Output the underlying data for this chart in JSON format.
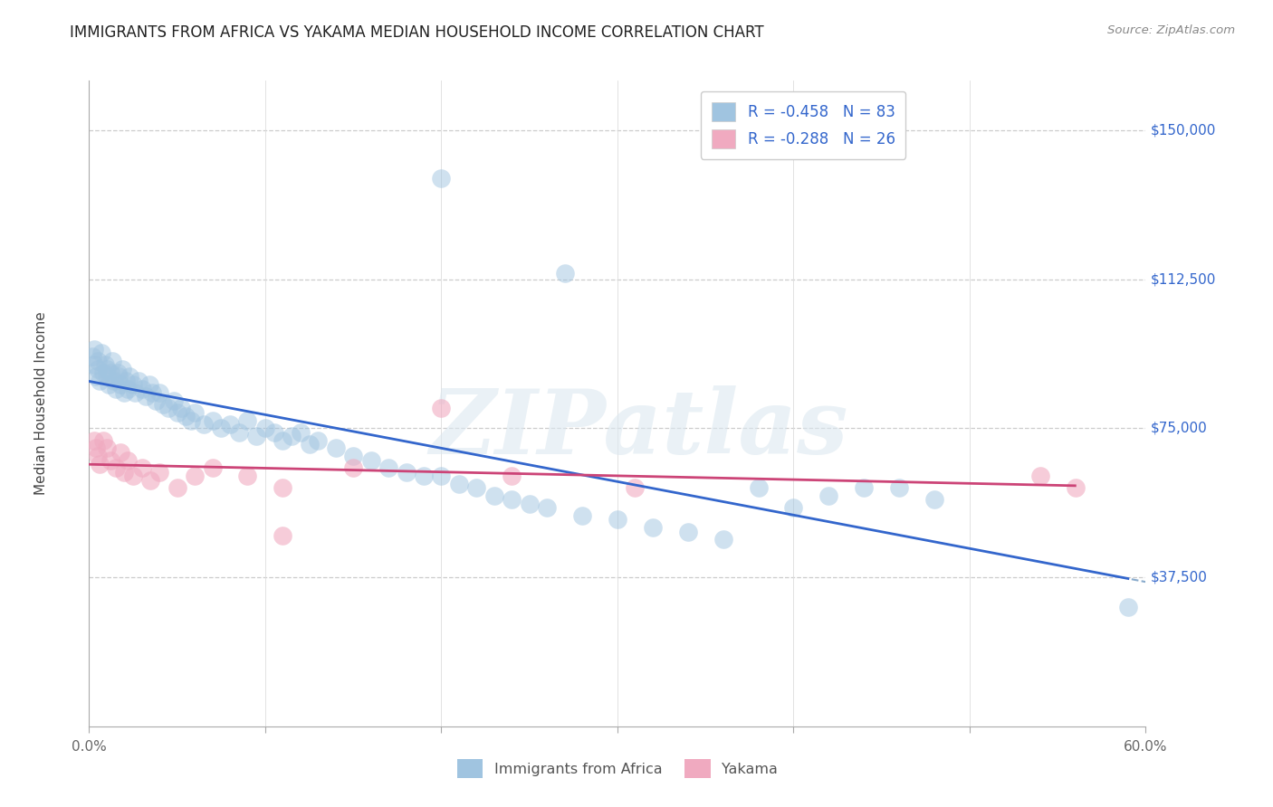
{
  "title": "IMMIGRANTS FROM AFRICA VS YAKAMA MEDIAN HOUSEHOLD INCOME CORRELATION CHART",
  "source": "Source: ZipAtlas.com",
  "ylabel": "Median Household Income",
  "xlim": [
    0.0,
    0.6
  ],
  "ylim": [
    0,
    162500
  ],
  "ytick_labels": [
    "$150,000",
    "$112,500",
    "$75,000",
    "$37,500"
  ],
  "ytick_values": [
    150000,
    112500,
    75000,
    37500
  ],
  "xtick_labels": [
    "0.0%",
    "",
    "",
    "",
    "",
    "",
    "60.0%"
  ],
  "xtick_values": [
    0.0,
    0.1,
    0.2,
    0.3,
    0.4,
    0.5,
    0.6
  ],
  "legend_label1": "R = -0.458   N = 83",
  "legend_label2": "R = -0.288   N = 26",
  "legend_bottom1": "Immigrants from Africa",
  "legend_bottom2": "Yakama",
  "blue_color": "#a0c4e0",
  "pink_color": "#f0aac0",
  "blue_line_color": "#3366cc",
  "pink_line_color": "#cc4477",
  "dashed_line_color": "#88aacc",
  "background_color": "#ffffff",
  "watermark": "ZIPatlas",
  "text_color": "#444444",
  "grid_color": "#cccccc",
  "right_label_color": "#3366cc",
  "blue_x": [
    0.002,
    0.003,
    0.003,
    0.004,
    0.005,
    0.005,
    0.006,
    0.007,
    0.008,
    0.009,
    0.01,
    0.01,
    0.011,
    0.012,
    0.013,
    0.014,
    0.015,
    0.016,
    0.017,
    0.018,
    0.019,
    0.02,
    0.021,
    0.022,
    0.023,
    0.025,
    0.026,
    0.028,
    0.03,
    0.032,
    0.034,
    0.036,
    0.038,
    0.04,
    0.042,
    0.045,
    0.048,
    0.05,
    0.052,
    0.055,
    0.058,
    0.06,
    0.065,
    0.07,
    0.075,
    0.08,
    0.085,
    0.09,
    0.095,
    0.1,
    0.105,
    0.11,
    0.115,
    0.12,
    0.125,
    0.13,
    0.14,
    0.15,
    0.16,
    0.17,
    0.18,
    0.19,
    0.2,
    0.21,
    0.22,
    0.23,
    0.24,
    0.25,
    0.26,
    0.28,
    0.2,
    0.27,
    0.3,
    0.32,
    0.34,
    0.36,
    0.38,
    0.4,
    0.42,
    0.44,
    0.46,
    0.48,
    0.59
  ],
  "blue_y": [
    93000,
    91000,
    95000,
    88000,
    92000,
    90000,
    87000,
    94000,
    89000,
    91000,
    88000,
    90000,
    86000,
    89000,
    92000,
    87000,
    85000,
    89000,
    88000,
    86000,
    90000,
    84000,
    87000,
    85000,
    88000,
    86000,
    84000,
    87000,
    85000,
    83000,
    86000,
    84000,
    82000,
    84000,
    81000,
    80000,
    82000,
    79000,
    80000,
    78000,
    77000,
    79000,
    76000,
    77000,
    75000,
    76000,
    74000,
    77000,
    73000,
    75000,
    74000,
    72000,
    73000,
    74000,
    71000,
    72000,
    70000,
    68000,
    67000,
    65000,
    64000,
    63000,
    63000,
    61000,
    60000,
    58000,
    57000,
    56000,
    55000,
    53000,
    138000,
    114000,
    52000,
    50000,
    49000,
    47000,
    60000,
    55000,
    58000,
    60000,
    60000,
    57000,
    30000
  ],
  "pink_x": [
    0.003,
    0.004,
    0.005,
    0.006,
    0.008,
    0.01,
    0.012,
    0.015,
    0.018,
    0.02,
    0.022,
    0.025,
    0.03,
    0.035,
    0.04,
    0.05,
    0.06,
    0.07,
    0.09,
    0.11,
    0.15,
    0.2,
    0.24,
    0.31,
    0.54,
    0.56
  ],
  "pink_y": [
    72000,
    70000,
    68000,
    66000,
    72000,
    70000,
    67000,
    65000,
    69000,
    64000,
    67000,
    63000,
    65000,
    62000,
    64000,
    60000,
    63000,
    65000,
    63000,
    60000,
    65000,
    80000,
    63000,
    60000,
    63000,
    60000
  ],
  "pink_low_x": [
    0.11
  ],
  "pink_low_y": [
    48000
  ]
}
